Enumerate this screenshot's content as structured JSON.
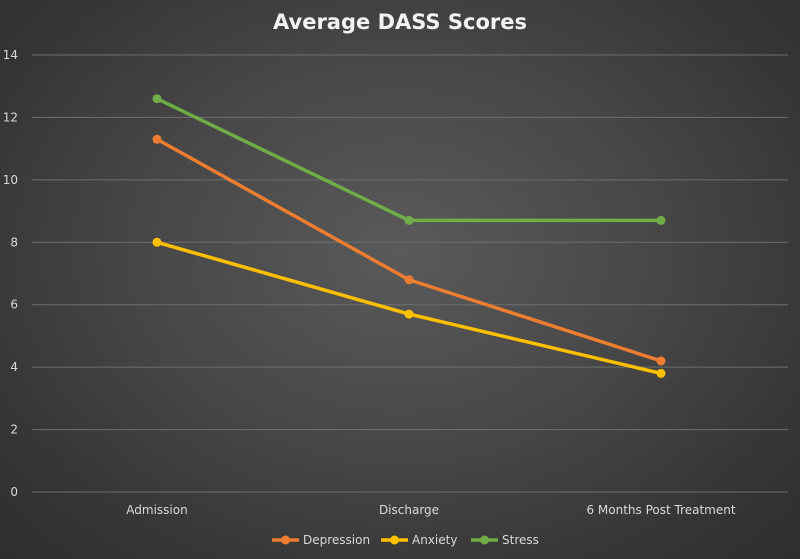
{
  "chart_data": {
    "type": "line",
    "title": "Average DASS Scores",
    "categories": [
      "Admission",
      "Discharge",
      "6 Months Post Treatment"
    ],
    "series": [
      {
        "name": "Depression",
        "values": [
          11.3,
          6.8,
          4.2
        ],
        "color": "#ed7d31"
      },
      {
        "name": "Anxiety",
        "values": [
          8.0,
          5.7,
          3.8
        ],
        "color": "#ffc000"
      },
      {
        "name": "Stress",
        "values": [
          12.6,
          8.7,
          8.7
        ],
        "color": "#70ad47"
      }
    ],
    "ylim": [
      0,
      14
    ],
    "yticks": [
      "0",
      "2",
      "4",
      "6",
      "8",
      "10",
      "12",
      "14"
    ],
    "grid": true,
    "legend_position": "bottom"
  }
}
